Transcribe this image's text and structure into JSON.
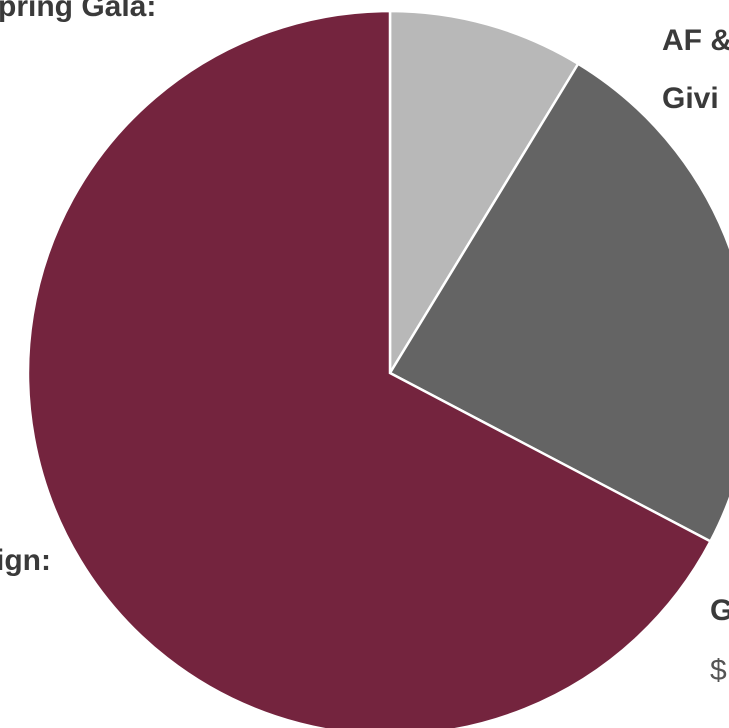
{
  "chart_data": {
    "type": "pie",
    "categories": [
      null,
      null,
      null
    ],
    "values": [
      8.7,
      24,
      67.3
    ],
    "colors": [
      "#b8b8b8",
      "#646464",
      "#74243e"
    ],
    "annotations": [
      "pring Gala:",
      "AF &",
      "Givi",
      "ign:",
      "G",
      "$"
    ]
  }
}
